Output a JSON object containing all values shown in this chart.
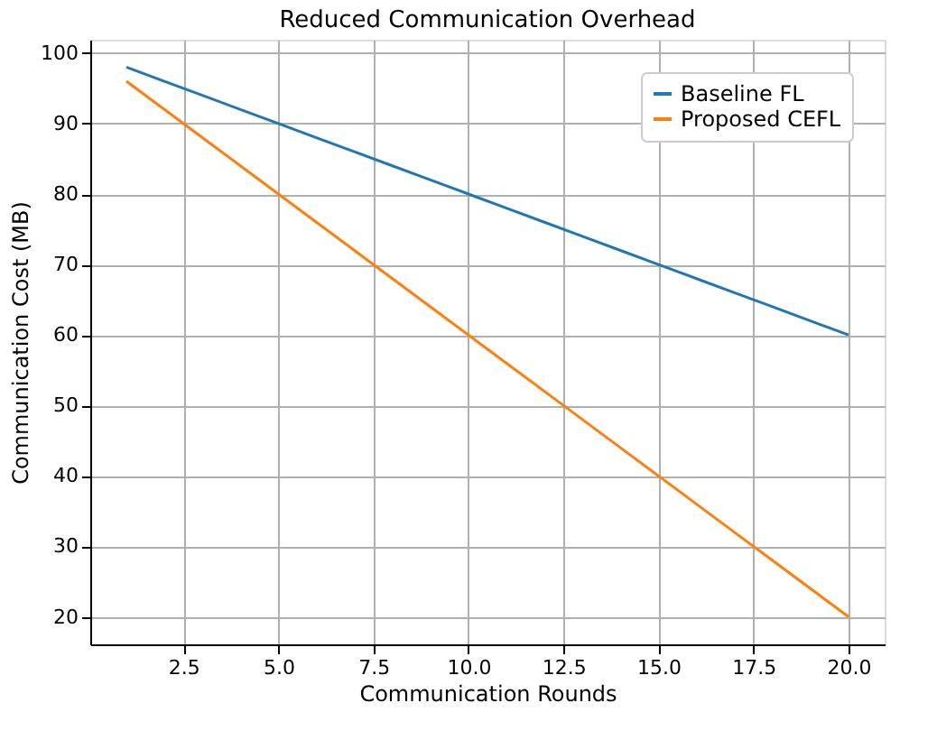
{
  "chart_data": {
    "type": "line",
    "title": "Reduced Communication Overhead",
    "xlabel": "Communication Rounds",
    "ylabel": "Communication Cost (MB)",
    "x": [
      1,
      2,
      3,
      4,
      5,
      6,
      7,
      8,
      9,
      10,
      11,
      12,
      13,
      14,
      15,
      16,
      17,
      18,
      19,
      20
    ],
    "series": [
      {
        "name": "Baseline FL",
        "color": "#1f77b4",
        "values": [
          98,
          96,
          94,
          92,
          90,
          88,
          86,
          84,
          82,
          80,
          78,
          76,
          74,
          72,
          70,
          68,
          66,
          64,
          62,
          60
        ]
      },
      {
        "name": "Proposed CEFL",
        "color": "#ff7f0e",
        "values": [
          96,
          92,
          88,
          84,
          80,
          76,
          72,
          68,
          64,
          60,
          56,
          52,
          48,
          44,
          40,
          36,
          32,
          28,
          24,
          20
        ]
      }
    ],
    "xlim": [
      0.05,
      20.95
    ],
    "ylim": [
      16.1,
      101.9
    ],
    "xticks": [
      {
        "value": 2.5,
        "label": "2.5"
      },
      {
        "value": 5,
        "label": "5.0"
      },
      {
        "value": 7.5,
        "label": "7.5"
      },
      {
        "value": 10,
        "label": "10.0"
      },
      {
        "value": 12.5,
        "label": "12.5"
      },
      {
        "value": 15,
        "label": "15.0"
      },
      {
        "value": 17.5,
        "label": "17.5"
      },
      {
        "value": 20,
        "label": "20.0"
      }
    ],
    "yticks": [
      20,
      30,
      40,
      50,
      60,
      70,
      80,
      90,
      100
    ],
    "grid": true,
    "legend": "top right",
    "marker": "none",
    "line_style": "solid"
  }
}
